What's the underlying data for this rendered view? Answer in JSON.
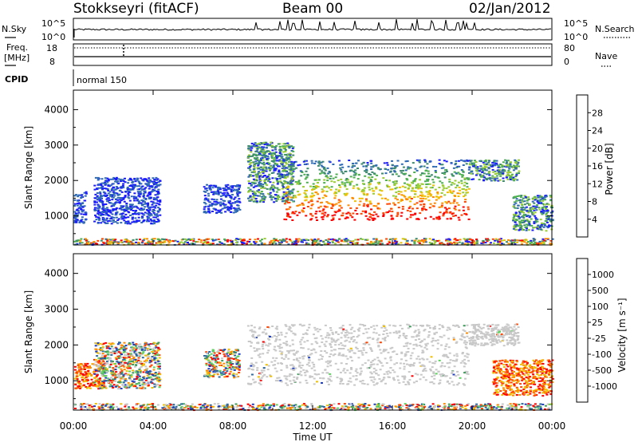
{
  "header": {
    "station": "Stokkseyri (fitACF)",
    "beam": "Beam 00",
    "date": "02/Jan/2012"
  },
  "noise_panel": {
    "left_label": "N.Sky",
    "left_ticks": [
      "10^5",
      "10^0"
    ],
    "right_ticks": [
      "10^5",
      "10^0"
    ],
    "right_label": "N.Search"
  },
  "freq_panel": {
    "left_label_line1": "Freq.",
    "left_label_line2": "[MHz]",
    "left_ticks": [
      "18",
      "8"
    ],
    "right_ticks": [
      "80",
      "0"
    ],
    "right_label": "Nave"
  },
  "cpid": {
    "label": "CPID",
    "value": "normal 150"
  },
  "chart_data": [
    {
      "type": "heatmap",
      "panel": "power",
      "xlabel": "",
      "ylabel": "Slant Range [km]",
      "x_ticks": [
        "00:00",
        "04:00",
        "08:00",
        "12:00",
        "16:00",
        "20:00",
        "00:00"
      ],
      "x_range_hours": [
        0,
        24
      ],
      "y_ticks": [
        1000,
        2000,
        3000,
        4000
      ],
      "ylim": [
        180,
        4550
      ],
      "colorbar_label": "Power [dB]",
      "colorbar_ticks": [
        28,
        24,
        20,
        16,
        12,
        8,
        4
      ],
      "colorbar_colors": [
        "#1a1aff",
        "#2f6ab5",
        "#3d8a6e",
        "#4caf50",
        "#9acd32",
        "#f0c000",
        "#ff8c00",
        "#ff4500",
        "#ff0000"
      ],
      "scatter_regions": [
        {
          "t": [
            0.0,
            24.0
          ],
          "r": [
            200,
            380
          ],
          "level": "mixed-low"
        },
        {
          "t": [
            0.0,
            0.6
          ],
          "r": [
            800,
            1700
          ],
          "level": "low"
        },
        {
          "t": [
            1.0,
            4.3
          ],
          "r": [
            800,
            2100
          ],
          "level": "low"
        },
        {
          "t": [
            6.5,
            8.3
          ],
          "r": [
            1100,
            1900
          ],
          "level": "low"
        },
        {
          "t": [
            8.7,
            11.0
          ],
          "r": [
            1400,
            3100
          ],
          "level": "mid"
        },
        {
          "t": [
            10.5,
            19.8
          ],
          "r": [
            900,
            2600
          ],
          "level": "high"
        },
        {
          "t": [
            19.8,
            22.3
          ],
          "r": [
            2000,
            2600
          ],
          "level": "mid"
        },
        {
          "t": [
            22.0,
            24.0
          ],
          "r": [
            600,
            1600
          ],
          "level": "mid"
        }
      ]
    },
    {
      "type": "heatmap",
      "panel": "velocity",
      "xlabel": "Time UT",
      "ylabel": "Slant Range [km]",
      "x_ticks": [
        "00:00",
        "04:00",
        "08:00",
        "12:00",
        "16:00",
        "20:00",
        "00:00"
      ],
      "x_range_hours": [
        0,
        24
      ],
      "y_ticks": [
        1000,
        2000,
        3000,
        4000
      ],
      "ylim": [
        180,
        4550
      ],
      "colorbar_label": "Velocity [m s⁻¹]",
      "colorbar_ticks": [
        1000,
        500,
        100,
        25,
        -25,
        -100,
        -500,
        -1000
      ],
      "colorbar_colors": [
        "#1f3fbf",
        "#2e6aa0",
        "#3d9a5a",
        "#5fd35f",
        "#c8c8c8",
        "#c8c8c8",
        "#f0c000",
        "#ff8c00",
        "#ff4500",
        "#ff0000"
      ],
      "scatter_regions": [
        {
          "t": [
            0.0,
            24.0
          ],
          "r": [
            200,
            380
          ],
          "level": "mixed"
        },
        {
          "t": [
            0.0,
            1.5
          ],
          "r": [
            800,
            1500
          ],
          "level": "away"
        },
        {
          "t": [
            1.0,
            4.3
          ],
          "r": [
            800,
            2100
          ],
          "level": "mixed"
        },
        {
          "t": [
            6.5,
            8.3
          ],
          "r": [
            1100,
            1900
          ],
          "level": "mixed"
        },
        {
          "t": [
            8.7,
            19.8
          ],
          "r": [
            900,
            2600
          ],
          "level": "ground"
        },
        {
          "t": [
            19.8,
            22.3
          ],
          "r": [
            2000,
            2600
          ],
          "level": "ground"
        },
        {
          "t": [
            21.0,
            24.0
          ],
          "r": [
            600,
            1600
          ],
          "level": "away"
        }
      ]
    }
  ]
}
